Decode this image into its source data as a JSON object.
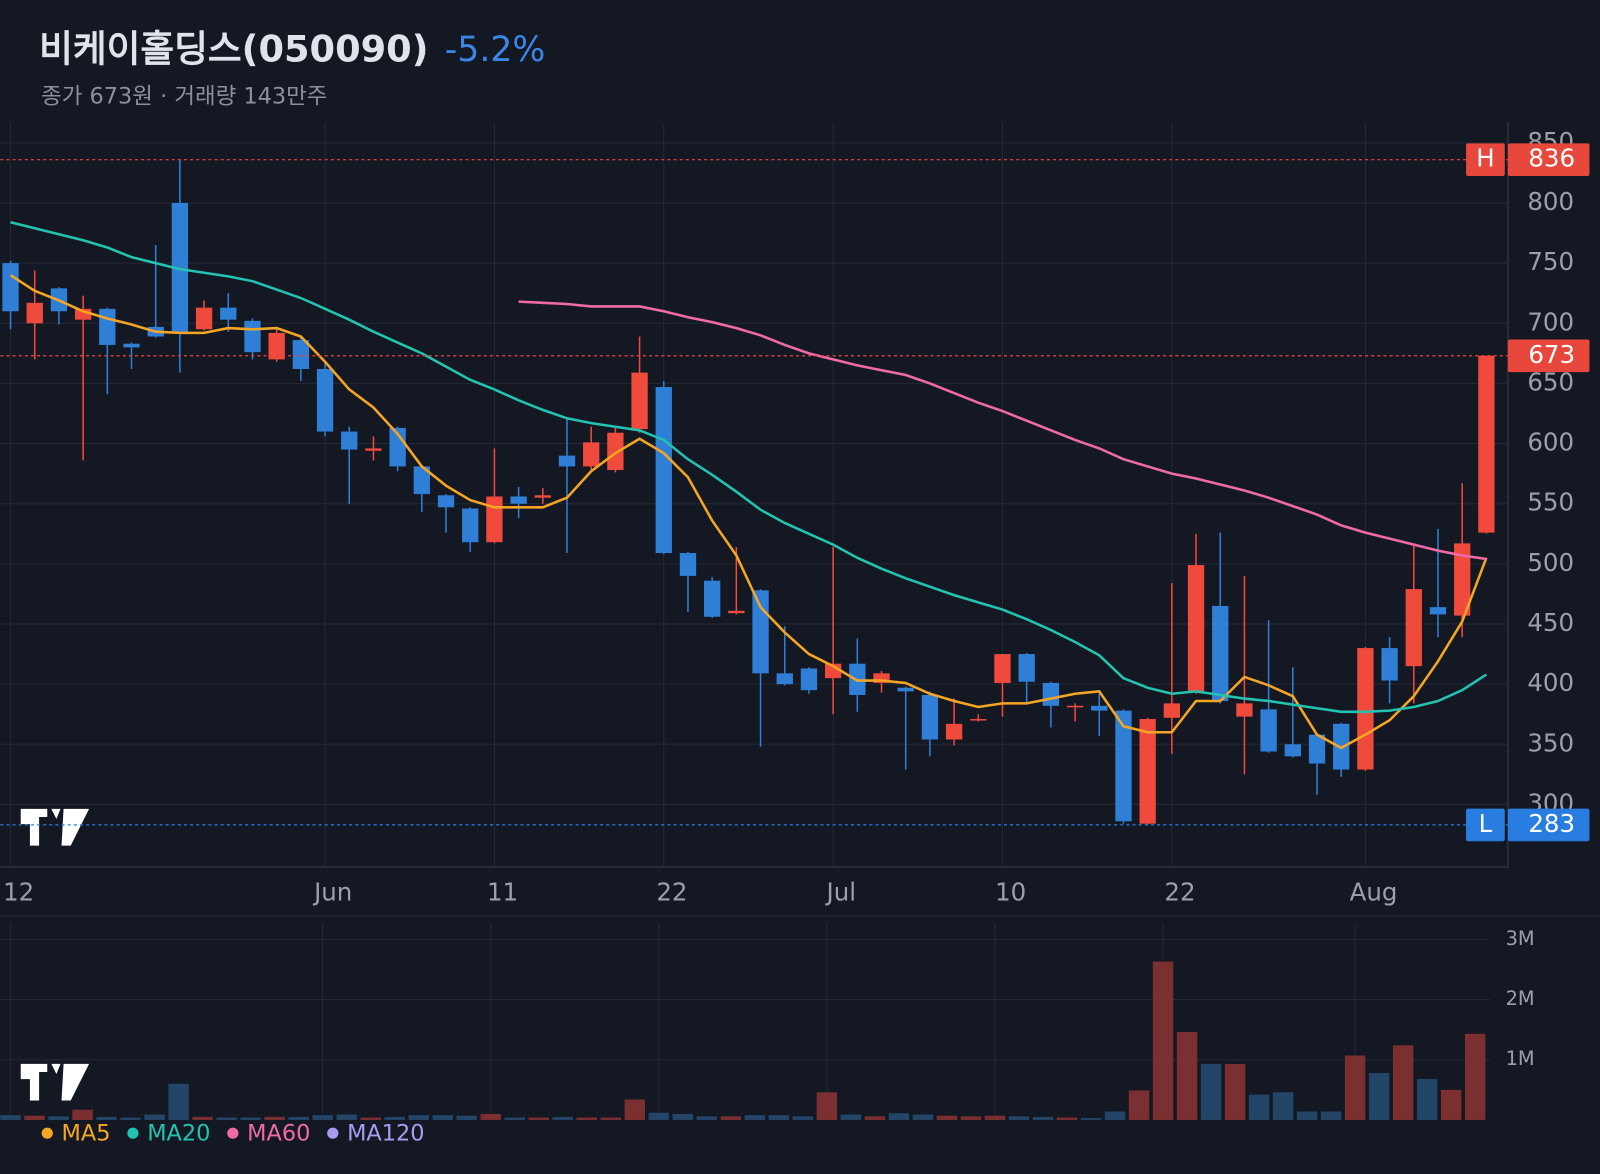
{
  "chart_data": {
    "type": "candlestick",
    "title": "비케이홀딩스(050090)",
    "change": "-5.2%",
    "subtitle": "종가 673원 · 거래량 143만주",
    "categories": [
      "12",
      null,
      null,
      null,
      null,
      null,
      null,
      null,
      null,
      null,
      null,
      null,
      null,
      "Jun",
      null,
      null,
      null,
      null,
      null,
      null,
      "11",
      null,
      null,
      null,
      null,
      null,
      null,
      "22",
      null,
      null,
      null,
      null,
      null,
      null,
      "Jul",
      null,
      null,
      null,
      null,
      null,
      null,
      "10",
      null,
      null,
      null,
      null,
      null,
      null,
      "22",
      null,
      null,
      null,
      null,
      null,
      null,
      null,
      "Aug",
      null,
      null,
      null,
      null,
      null
    ],
    "open": [
      750,
      700,
      729,
      703,
      712,
      683,
      697,
      800,
      695,
      713,
      702,
      670,
      686,
      662,
      610,
      594,
      613,
      581,
      557,
      546,
      518,
      556,
      555,
      590,
      581,
      578,
      612,
      647,
      509,
      486,
      459,
      478,
      409,
      413,
      405,
      417,
      401,
      397,
      391,
      354,
      370,
      401,
      425,
      401,
      381,
      382,
      378,
      284,
      372,
      394,
      465,
      373,
      379,
      350,
      358,
      367,
      329,
      430,
      415,
      464,
      457,
      526
    ],
    "high": [
      752,
      744,
      730,
      723,
      713,
      684,
      765,
      836,
      719,
      725,
      704,
      695,
      688,
      668,
      614,
      606,
      614,
      582,
      558,
      547,
      596,
      564,
      563,
      620,
      614,
      614,
      689,
      652,
      510,
      489,
      514,
      479,
      448,
      414,
      514,
      438,
      411,
      398,
      394,
      388,
      375,
      425,
      426,
      402,
      384,
      392,
      379,
      372,
      484,
      525,
      526,
      490,
      453,
      414,
      359,
      368,
      431,
      439,
      517,
      529,
      567,
      673
    ],
    "low": [
      695,
      670,
      699,
      586,
      641,
      662,
      688,
      659,
      694,
      693,
      670,
      668,
      652,
      606,
      550,
      586,
      577,
      543,
      526,
      510,
      517,
      538,
      550,
      509,
      578,
      576,
      609,
      508,
      460,
      455,
      458,
      348,
      399,
      392,
      375,
      377,
      393,
      329,
      340,
      349,
      369,
      373,
      384,
      364,
      369,
      357,
      284,
      283,
      342,
      392,
      384,
      325,
      343,
      339,
      308,
      323,
      328,
      384,
      384,
      439,
      439,
      525
    ],
    "close": [
      710,
      717,
      710,
      712,
      682,
      680,
      689,
      692,
      713,
      703,
      676,
      692,
      662,
      610,
      595,
      596,
      581,
      558,
      547,
      518,
      556,
      550,
      557,
      581,
      601,
      609,
      659,
      509,
      490,
      456,
      461,
      409,
      400,
      395,
      417,
      391,
      409,
      394,
      354,
      367,
      371,
      425,
      402,
      382,
      382,
      378,
      286,
      371,
      384,
      499,
      386,
      384,
      344,
      340,
      334,
      329,
      430,
      403,
      479,
      458,
      517,
      673
    ],
    "up_color": "#ef4a3c",
    "down_color": "#2f7fd6",
    "ylim": [
      248,
      867
    ],
    "yticks": [
      300,
      350,
      400,
      450,
      500,
      550,
      600,
      650,
      700,
      750,
      800,
      850
    ],
    "grid": true,
    "moving_averages": [
      {
        "name": "MA5",
        "color": "#f5a524",
        "values": [
          740,
          727,
          719,
          710,
          704,
          699,
          693,
          692,
          692,
          696,
          695,
          696,
          689,
          668,
          645,
          630,
          608,
          581,
          565,
          553,
          547,
          547,
          547,
          555,
          577,
          592,
          604,
          592,
          572,
          536,
          507,
          464,
          443,
          425,
          415,
          403,
          403,
          401,
          392,
          386,
          381,
          384,
          384,
          388,
          392,
          394,
          365,
          360,
          360,
          386,
          386,
          406,
          399,
          390,
          358,
          347,
          358,
          370,
          390,
          419,
          452,
          505
        ]
      },
      {
        "name": "MA20",
        "color": "#22c3b0",
        "values": [
          784,
          779,
          774,
          769,
          763,
          755,
          750,
          745,
          742,
          739,
          735,
          728,
          721,
          712,
          703,
          693,
          684,
          675,
          664,
          653,
          645,
          636,
          628,
          621,
          617,
          614,
          611,
          603,
          587,
          574,
          560,
          545,
          534,
          525,
          516,
          505,
          496,
          488,
          481,
          474,
          468,
          462,
          454,
          445,
          435,
          424,
          405,
          397,
          392,
          394,
          391,
          388,
          386,
          383,
          380,
          377,
          377,
          378,
          381,
          386,
          395,
          408
        ]
      },
      {
        "name": "MA60",
        "color": "#f06aa8",
        "values": [
          null,
          null,
          null,
          null,
          null,
          null,
          null,
          null,
          null,
          null,
          null,
          null,
          null,
          null,
          null,
          null,
          null,
          null,
          null,
          null,
          null,
          718,
          717,
          716,
          714,
          714,
          714,
          710,
          705,
          701,
          696,
          690,
          682,
          675,
          670,
          665,
          661,
          657,
          650,
          642,
          634,
          627,
          619,
          611,
          603,
          596,
          587,
          581,
          575,
          571,
          566,
          561,
          555,
          548,
          541,
          532,
          526,
          521,
          516,
          511,
          507,
          504
        ]
      },
      {
        "name": "MA120",
        "color": "#a99cf0"
      }
    ],
    "markers": [
      {
        "label": "H",
        "value": 836,
        "color": "#e8473b"
      },
      {
        "value": 673,
        "color": "#e8473b"
      },
      {
        "label": "L",
        "value": 283,
        "color": "#2a7de0"
      }
    ],
    "volume": {
      "values": [
        80000,
        70000,
        60000,
        170000,
        50000,
        40000,
        90000,
        600000,
        50000,
        40000,
        40000,
        50000,
        50000,
        80000,
        90000,
        40000,
        50000,
        80000,
        80000,
        70000,
        100000,
        40000,
        40000,
        50000,
        40000,
        40000,
        340000,
        120000,
        100000,
        60000,
        60000,
        80000,
        80000,
        60000,
        460000,
        90000,
        60000,
        110000,
        90000,
        70000,
        60000,
        70000,
        60000,
        50000,
        40000,
        30000,
        140000,
        490000,
        2630000,
        1460000,
        930000,
        930000,
        420000,
        460000,
        140000,
        140000,
        1070000,
        780000,
        1240000,
        680000,
        500000,
        1430000
      ],
      "ylim": [
        0,
        3270000
      ],
      "yticks": [
        {
          "value": 1000000,
          "label": "1M"
        },
        {
          "value": 2000000,
          "label": "2M"
        },
        {
          "value": 3000000,
          "label": "3M"
        }
      ],
      "up_color": "#7c2f31",
      "down_color": "#234668"
    }
  }
}
